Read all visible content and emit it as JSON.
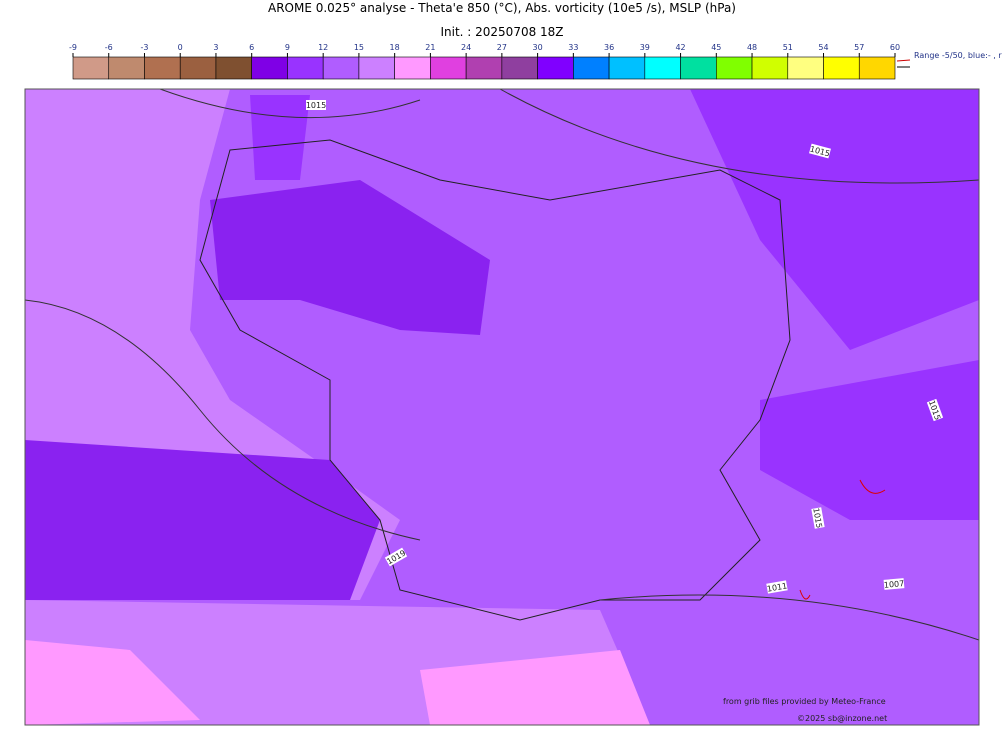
{
  "header": {
    "title": "AROME 0.025° analyse - Theta'e 850 (°C), Abs. vorticity (10e5 /s), MSLP (hPa)",
    "init": "Init. : 20250708 18Z"
  },
  "colorbar": {
    "ticks": [
      -9,
      -6,
      -3,
      0,
      3,
      6,
      9,
      12,
      15,
      18,
      21,
      24,
      27,
      30,
      33,
      36,
      39,
      42,
      45,
      48,
      51,
      54,
      57,
      60
    ],
    "colors": [
      "#d09a88",
      "#bf8a6e",
      "#b07050",
      "#9b6040",
      "#7f5030",
      "#7f00e6",
      "#9933ff",
      "#b05dff",
      "#cc80ff",
      "#ff99ff",
      "#e040e0",
      "#b040b0",
      "#8f3f9f",
      "#8000ff",
      "#0080ff",
      "#00c0ff",
      "#00ffff",
      "#00e0a0",
      "#80ff00",
      "#d0ff00",
      "#ffff80",
      "#ffff00",
      "#ffd700"
    ],
    "range_note": "Range -5/50, blue:- , r"
  },
  "isobar_labels": [
    "1015",
    "1015",
    "1015",
    "1019",
    "1015",
    "1011",
    "1007"
  ],
  "credits": {
    "source": "from grib files provided by Meteo-France",
    "copyright": "©2025 sb@inzone.net"
  }
}
